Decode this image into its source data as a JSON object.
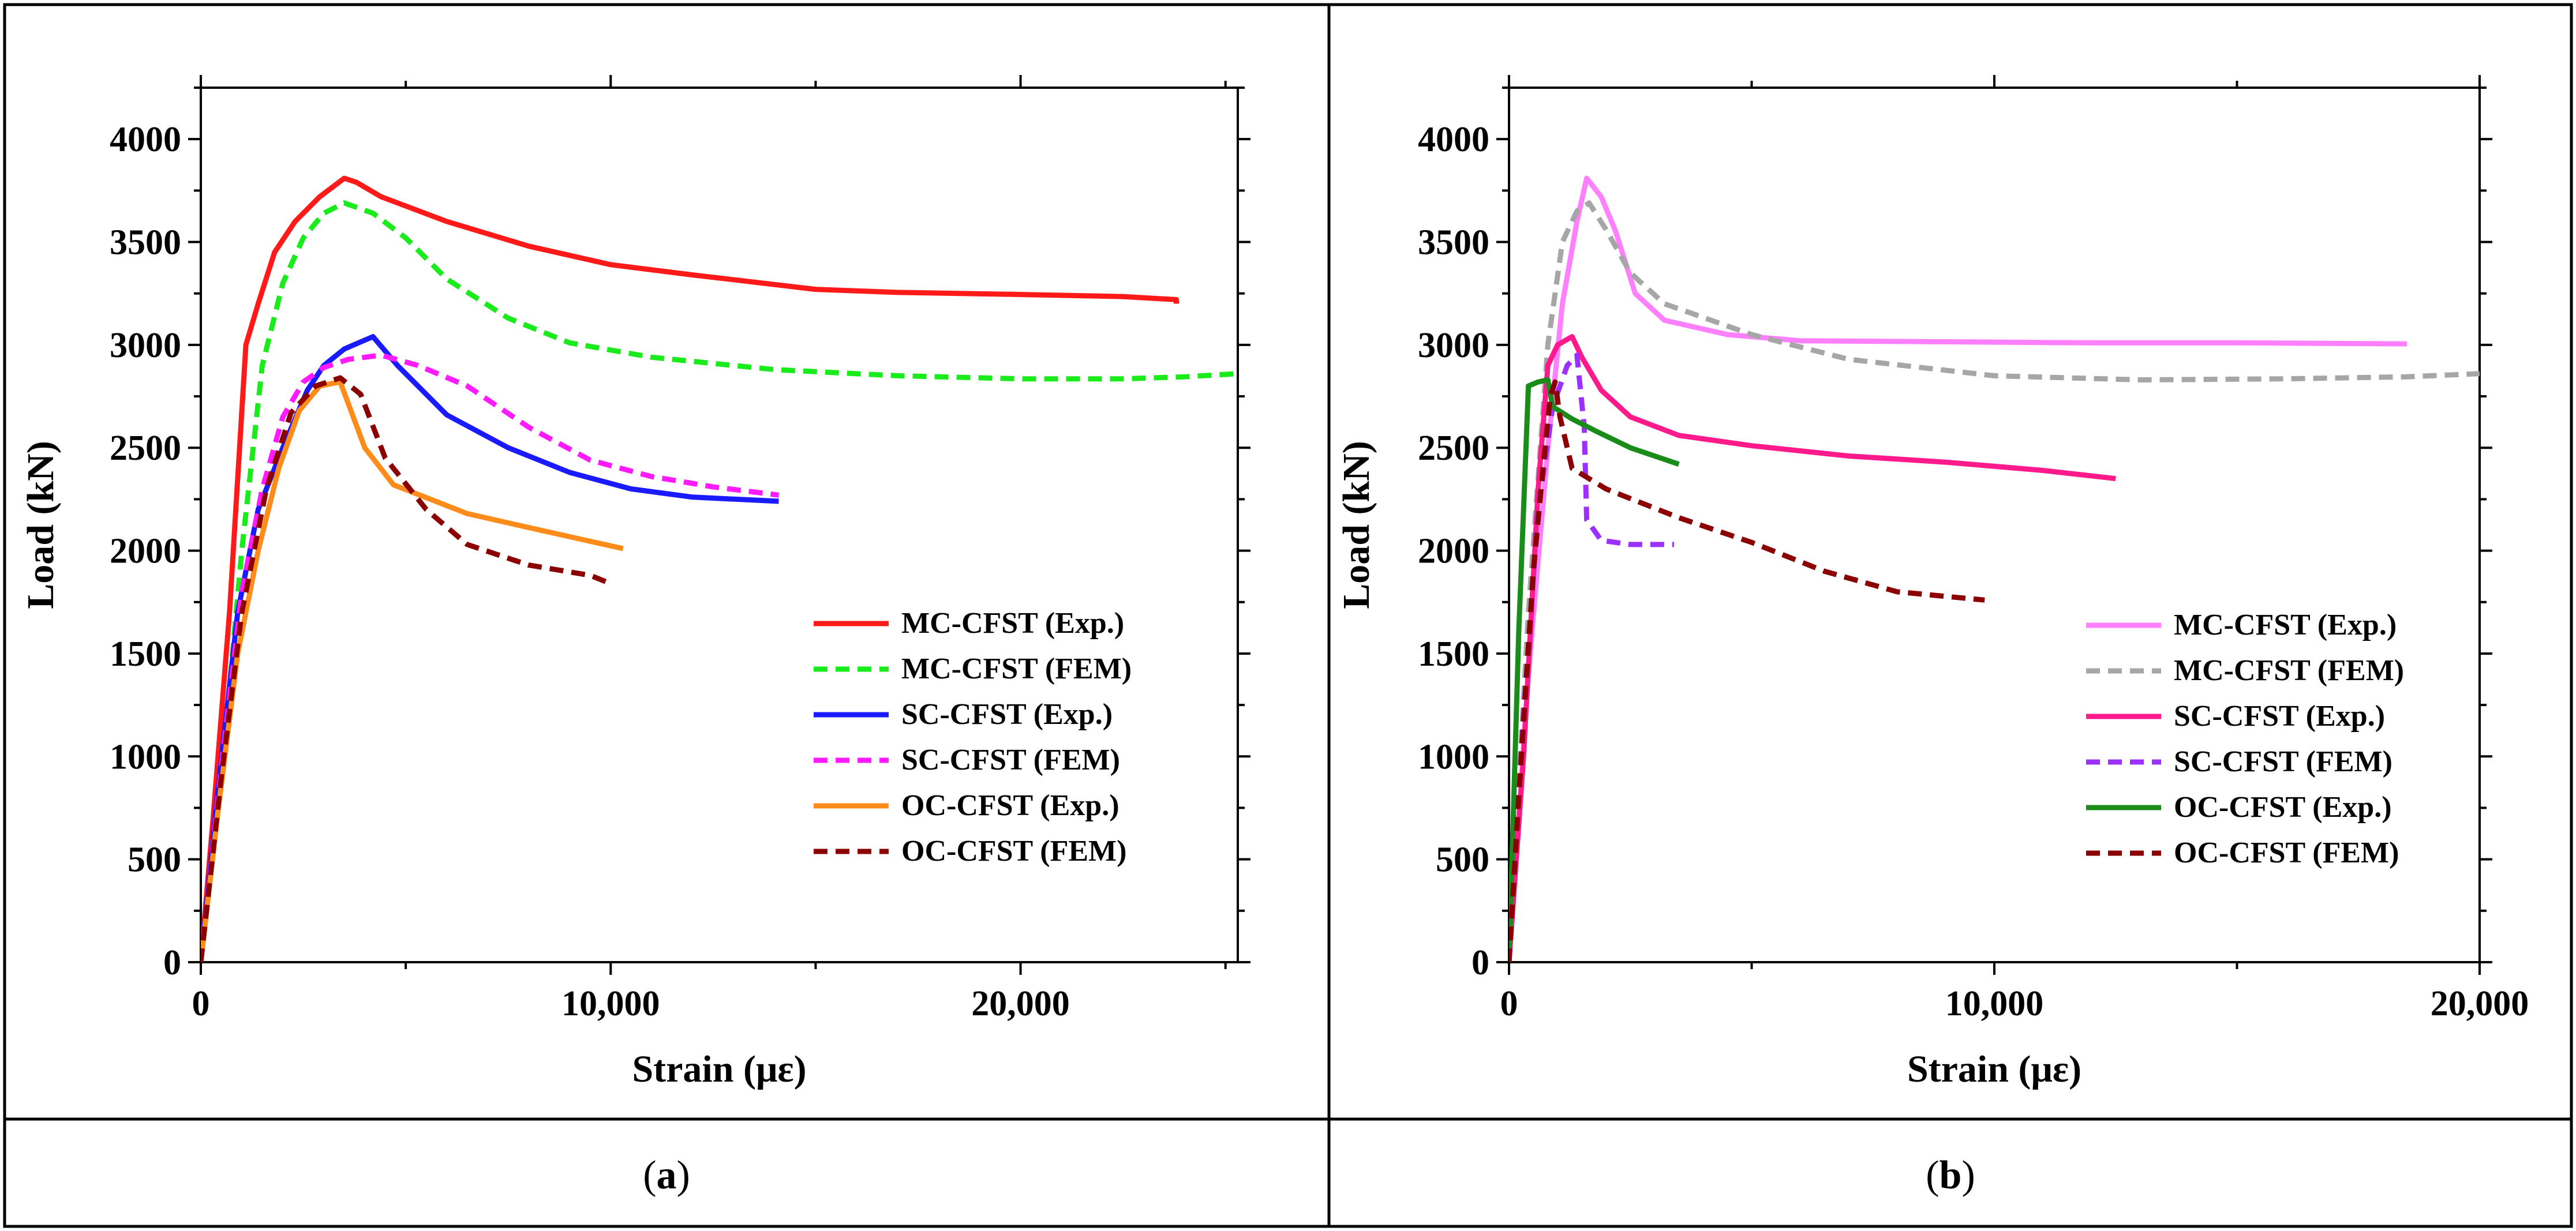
{
  "captions": {
    "a": {
      "open": "(",
      "letter": "a",
      "close": ")"
    },
    "b": {
      "open": "(",
      "letter": "b",
      "close": ")"
    }
  },
  "chart_data": [
    {
      "id": "a",
      "type": "line",
      "title": "",
      "xlabel": "Strain (με)",
      "ylabel": "Load (kN)",
      "xlim": [
        0,
        25300
      ],
      "ylim": [
        0,
        4250
      ],
      "xticks": [
        0,
        10000,
        20000
      ],
      "xtick_labels": [
        "0",
        "10,000",
        "20,000"
      ],
      "yticks": [
        0,
        500,
        1000,
        1500,
        2000,
        2500,
        3000,
        3500,
        4000
      ],
      "ytick_labels": [
        "0",
        "500",
        "1000",
        "1500",
        "2000",
        "2500",
        "3000",
        "3500",
        "4000"
      ],
      "legend_position": "lower-right",
      "series": [
        {
          "name": "MC-CFST (Exp.)",
          "color": "#ff1a1a",
          "dash": "solid",
          "points": [
            [
              0,
              0
            ],
            [
              300,
              700
            ],
            [
              700,
              1700
            ],
            [
              1100,
              3000
            ],
            [
              1400,
              3200
            ],
            [
              1800,
              3450
            ],
            [
              2300,
              3600
            ],
            [
              2900,
              3720
            ],
            [
              3500,
              3810
            ],
            [
              3800,
              3790
            ],
            [
              4400,
              3720
            ],
            [
              6000,
              3600
            ],
            [
              8000,
              3480
            ],
            [
              10000,
              3390
            ],
            [
              12000,
              3340
            ],
            [
              15000,
              3270
            ],
            [
              17000,
              3255
            ],
            [
              20000,
              3245
            ],
            [
              22500,
              3235
            ],
            [
              23800,
              3220
            ],
            [
              23800,
              3200
            ]
          ]
        },
        {
          "name": "MC-CFST (FEM)",
          "color": "#1aeb1a",
          "dash": "dashed",
          "points": [
            [
              0,
              0
            ],
            [
              500,
              900
            ],
            [
              1000,
              2000
            ],
            [
              1500,
              2900
            ],
            [
              2000,
              3300
            ],
            [
              2500,
              3520
            ],
            [
              3000,
              3640
            ],
            [
              3500,
              3690
            ],
            [
              4200,
              3640
            ],
            [
              5000,
              3520
            ],
            [
              6000,
              3320
            ],
            [
              7500,
              3130
            ],
            [
              9000,
              3010
            ],
            [
              11000,
              2940
            ],
            [
              14000,
              2880
            ],
            [
              17000,
              2850
            ],
            [
              20000,
              2835
            ],
            [
              22500,
              2835
            ],
            [
              24000,
              2845
            ],
            [
              25300,
              2860
            ]
          ]
        },
        {
          "name": "SC-CFST (Exp.)",
          "color": "#1a1aff",
          "dash": "solid",
          "points": [
            [
              0,
              0
            ],
            [
              400,
              800
            ],
            [
              900,
              1700
            ],
            [
              1400,
              2200
            ],
            [
              2000,
              2500
            ],
            [
              2600,
              2780
            ],
            [
              3000,
              2900
            ],
            [
              3500,
              2980
            ],
            [
              4200,
              3040
            ],
            [
              4800,
              2900
            ],
            [
              6000,
              2660
            ],
            [
              7500,
              2500
            ],
            [
              9000,
              2380
            ],
            [
              10500,
              2300
            ],
            [
              12000,
              2260
            ],
            [
              14100,
              2240
            ]
          ]
        },
        {
          "name": "SC-CFST (FEM)",
          "color": "#ff1aff",
          "dash": "dashed",
          "points": [
            [
              0,
              0
            ],
            [
              500,
              950
            ],
            [
              1000,
              1800
            ],
            [
              1500,
              2300
            ],
            [
              2000,
              2650
            ],
            [
              2500,
              2820
            ],
            [
              3000,
              2890
            ],
            [
              3600,
              2930
            ],
            [
              4400,
              2950
            ],
            [
              5300,
              2900
            ],
            [
              6500,
              2800
            ],
            [
              8000,
              2600
            ],
            [
              9500,
              2440
            ],
            [
              11000,
              2360
            ],
            [
              12500,
              2310
            ],
            [
              14100,
              2270
            ]
          ]
        },
        {
          "name": "OC-CFST (Exp.)",
          "color": "#ff8c1a",
          "dash": "solid",
          "points": [
            [
              0,
              0
            ],
            [
              400,
              700
            ],
            [
              900,
              1500
            ],
            [
              1400,
              2000
            ],
            [
              1900,
              2400
            ],
            [
              2400,
              2680
            ],
            [
              2900,
              2800
            ],
            [
              3400,
              2820
            ],
            [
              4000,
              2500
            ],
            [
              4700,
              2320
            ],
            [
              6500,
              2180
            ],
            [
              8500,
              2090
            ],
            [
              10300,
              2010
            ]
          ]
        },
        {
          "name": "OC-CFST (FEM)",
          "color": "#8b0000",
          "dash": "dashed",
          "points": [
            [
              0,
              0
            ],
            [
              500,
              900
            ],
            [
              1000,
              1700
            ],
            [
              1600,
              2300
            ],
            [
              2200,
              2670
            ],
            [
              2800,
              2800
            ],
            [
              3400,
              2840
            ],
            [
              3900,
              2760
            ],
            [
              4500,
              2450
            ],
            [
              5500,
              2200
            ],
            [
              6500,
              2030
            ],
            [
              8000,
              1930
            ],
            [
              9500,
              1880
            ],
            [
              10000,
              1840
            ]
          ]
        }
      ]
    },
    {
      "id": "b",
      "type": "line",
      "title": "",
      "xlabel": "Strain (με)",
      "ylabel": "Load (kN)",
      "xlim": [
        0,
        20000
      ],
      "ylim": [
        0,
        4250
      ],
      "xticks": [
        0,
        10000,
        20000
      ],
      "xtick_labels": [
        "0",
        "10,000",
        "20,000"
      ],
      "yticks": [
        0,
        500,
        1000,
        1500,
        2000,
        2500,
        3000,
        3500,
        4000
      ],
      "ytick_labels": [
        "0",
        "500",
        "1000",
        "1500",
        "2000",
        "2500",
        "3000",
        "3500",
        "4000"
      ],
      "legend_position": "lower-right",
      "series": [
        {
          "name": "MC-CFST (Exp.)",
          "color": "#ff80ff",
          "dash": "solid",
          "points": [
            [
              0,
              0
            ],
            [
              400,
              1400
            ],
            [
              800,
              2500
            ],
            [
              1100,
              3200
            ],
            [
              1400,
              3600
            ],
            [
              1600,
              3810
            ],
            [
              1900,
              3720
            ],
            [
              2200,
              3550
            ],
            [
              2600,
              3250
            ],
            [
              3200,
              3120
            ],
            [
              4500,
              3050
            ],
            [
              6000,
              3020
            ],
            [
              9000,
              3015
            ],
            [
              12000,
              3010
            ],
            [
              15000,
              3010
            ],
            [
              18500,
              3005
            ]
          ]
        },
        {
          "name": "MC-CFST (FEM)",
          "color": "#a6a6a6",
          "dash": "dashed",
          "points": [
            [
              0,
              0
            ],
            [
              400,
              1700
            ],
            [
              800,
              3000
            ],
            [
              1100,
              3500
            ],
            [
              1400,
              3650
            ],
            [
              1650,
              3690
            ],
            [
              2000,
              3560
            ],
            [
              2500,
              3350
            ],
            [
              3200,
              3200
            ],
            [
              5000,
              3050
            ],
            [
              7000,
              2930
            ],
            [
              10000,
              2850
            ],
            [
              13000,
              2830
            ],
            [
              16000,
              2835
            ],
            [
              18500,
              2845
            ],
            [
              20000,
              2860
            ]
          ]
        },
        {
          "name": "SC-CFST (Exp.)",
          "color": "#ff1a8c",
          "dash": "solid",
          "points": [
            [
              0,
              0
            ],
            [
              300,
              1000
            ],
            [
              600,
              2300
            ],
            [
              800,
              2900
            ],
            [
              1000,
              3000
            ],
            [
              1300,
              3040
            ],
            [
              1500,
              2940
            ],
            [
              1900,
              2780
            ],
            [
              2500,
              2650
            ],
            [
              3500,
              2560
            ],
            [
              5000,
              2510
            ],
            [
              7000,
              2460
            ],
            [
              9000,
              2430
            ],
            [
              11000,
              2390
            ],
            [
              12500,
              2350
            ]
          ]
        },
        {
          "name": "SC-CFST (FEM)",
          "color": "#9b30ff",
          "dash": "dashed",
          "points": [
            [
              0,
              0
            ],
            [
              300,
              1200
            ],
            [
              600,
              2200
            ],
            [
              900,
              2700
            ],
            [
              1200,
              2900
            ],
            [
              1400,
              2950
            ],
            [
              1550,
              2600
            ],
            [
              1600,
              2150
            ],
            [
              1900,
              2050
            ],
            [
              2500,
              2030
            ],
            [
              3400,
              2030
            ]
          ]
        },
        {
          "name": "OC-CFST (Exp.)",
          "color": "#1a8c1a",
          "dash": "solid",
          "points": [
            [
              0,
              0
            ],
            [
              200,
              1600
            ],
            [
              400,
              2800
            ],
            [
              600,
              2820
            ],
            [
              800,
              2830
            ],
            [
              900,
              2700
            ],
            [
              1300,
              2640
            ],
            [
              1800,
              2580
            ],
            [
              2500,
              2500
            ],
            [
              3500,
              2420
            ]
          ]
        },
        {
          "name": "OC-CFST (FEM)",
          "color": "#8b0000",
          "dash": "dashed",
          "points": [
            [
              0,
              0
            ],
            [
              200,
              800
            ],
            [
              500,
              1900
            ],
            [
              700,
              2400
            ],
            [
              850,
              2750
            ],
            [
              950,
              2820
            ],
            [
              1050,
              2650
            ],
            [
              1300,
              2400
            ],
            [
              2000,
              2300
            ],
            [
              3500,
              2160
            ],
            [
              5000,
              2040
            ],
            [
              6500,
              1900
            ],
            [
              8000,
              1800
            ],
            [
              9800,
              1760
            ]
          ]
        }
      ]
    }
  ]
}
